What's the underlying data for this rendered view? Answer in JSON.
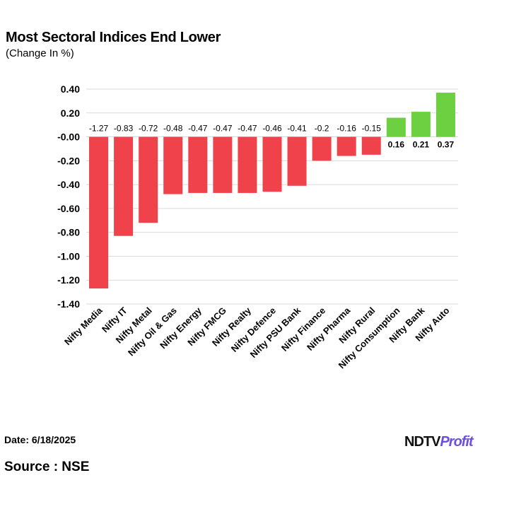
{
  "header": {
    "title": "Most Sectoral Indices End Lower",
    "subtitle": "(Change In %)"
  },
  "footer": {
    "date": "Date: 6/18/2025",
    "source": "Source : NSE",
    "logo": "NDTV Profit"
  },
  "chart_data": {
    "type": "bar",
    "title": "Most Sectoral Indices End Lower",
    "subtitle": "(Change In %)",
    "categories": [
      "Nifty Media",
      "Nifty IT",
      "Nifty Metal",
      "Nifty Oil & Gas",
      "Nifty Energy",
      "Nifty FMCG",
      "Nifty Realty",
      "Nifty Defence",
      "Nifty PSU Bank",
      "Nifty Finance",
      "Nifty Pharma",
      "Nifty Rural",
      "Nifty Consumption",
      "Nifty Bank",
      "Nifty Auto"
    ],
    "values": [
      -1.27,
      -0.83,
      -0.72,
      -0.48,
      -0.47,
      -0.47,
      -0.47,
      -0.46,
      -0.41,
      -0.2,
      -0.16,
      -0.15,
      0.16,
      0.21,
      0.37
    ],
    "labels": [
      "-1.27",
      "-0.83",
      "-0.72",
      "-0.48",
      "-0.47",
      "-0.47",
      "-0.47",
      "-0.46",
      "-0.41",
      "-0.2",
      "-0.16",
      "-0.15",
      "0.16",
      "0.21",
      "0.37"
    ],
    "yticks": [
      "0.40",
      "0.20",
      "-0.00",
      "-0.20",
      "-0.40",
      "-0.60",
      "-0.80",
      "-1.00",
      "-1.20",
      "-1.40"
    ],
    "ylim": [
      -1.4,
      0.4
    ],
    "grid": true,
    "colors": {
      "negative": "#f0424a",
      "positive": "#6cd040"
    }
  }
}
